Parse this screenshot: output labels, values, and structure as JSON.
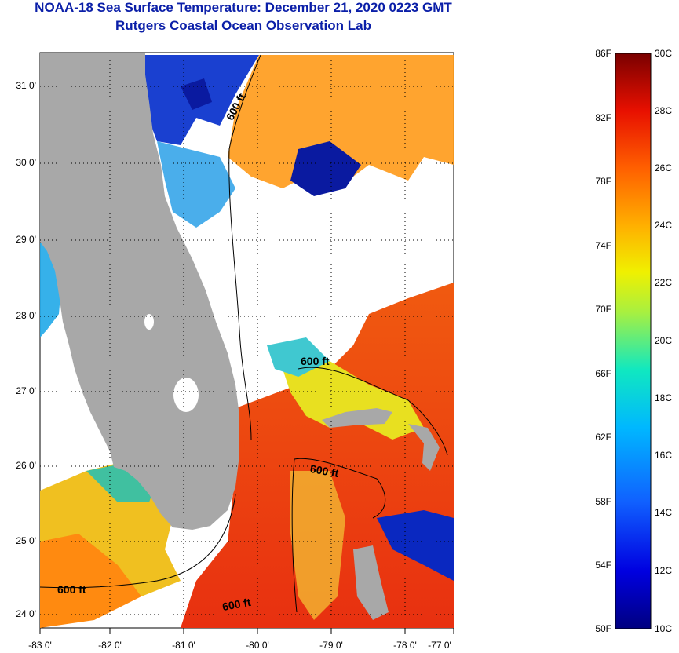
{
  "title": {
    "line1": "NOAA-18 Sea Surface Temperature:  December 21, 2020 0223 GMT",
    "line2": "Rutgers Coastal Ocean Observation Lab"
  },
  "map": {
    "lat_labels": [
      "31 0'",
      "30 0'",
      "29 0'",
      "28 0'",
      "27 0'",
      "26 0'",
      "25 0'",
      "24 0'"
    ],
    "lon_labels": [
      "-83 0'",
      "-82 0'",
      "-81 0'",
      "-80 0'",
      "-79 0'",
      "-78 0'",
      "-77 0'"
    ],
    "contour_labels": [
      "600 ft",
      "600 ft",
      "600 ft",
      "600 ft",
      "600 ft"
    ]
  },
  "colorbar": {
    "f_labels": [
      "86F",
      "82F",
      "78F",
      "74F",
      "70F",
      "66F",
      "62F",
      "58F",
      "54F",
      "50F"
    ],
    "c_labels": [
      "30C",
      "28C",
      "26C",
      "24C",
      "22C",
      "20C",
      "18C",
      "16C",
      "14C",
      "12C",
      "10C"
    ]
  },
  "colors": {
    "title": "#0b1fa8",
    "land": "#a8a8a8",
    "warm": "#ee3d10",
    "cool": "#1a50d8"
  }
}
